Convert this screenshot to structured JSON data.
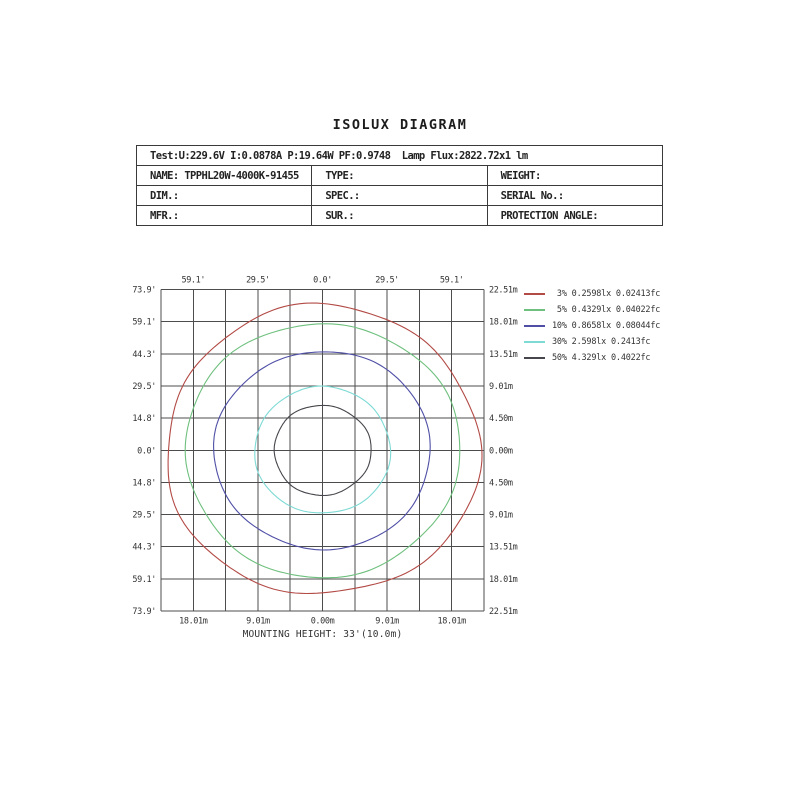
{
  "title": "ISOLUX DIAGRAM",
  "info_table": {
    "test_line": "Test:U:229.6V I:0.0878A P:19.64W PF:0.9748  Lamp Flux:2822.72x1 lm",
    "rows": [
      {
        "c1": "NAME: TPPHL20W-4000K-91455",
        "c2": "TYPE:",
        "c3": "WEIGHT:"
      },
      {
        "c1": "DIM.:",
        "c2": "SPEC.:",
        "c3": "SERIAL No.:"
      },
      {
        "c1": "MFR.:",
        "c2": "SUR.:",
        "c3": "PROTECTION ANGLE:"
      }
    ]
  },
  "chart_data": {
    "type": "isolux_contour",
    "title": "ISOLUX DIAGRAM",
    "grid": {
      "cols": 10,
      "rows": 10,
      "cell_size_m": 4.5,
      "cell_size_ft": 14.78,
      "grid_on": true
    },
    "axes": {
      "top_unit": "feet",
      "left_unit": "feet",
      "right_unit": "meters",
      "bottom_unit": "meters",
      "top_ticks": [
        "59.1'",
        "29.5'",
        "0.0'",
        "29.5'",
        "59.1'"
      ],
      "left_ticks": [
        "73.9'",
        "59.1'",
        "44.3'",
        "29.5'",
        "14.8'",
        "0.0'",
        "14.8'",
        "29.5'",
        "44.3'",
        "59.1'",
        "73.9'"
      ],
      "right_ticks": [
        "22.51m",
        "18.01m",
        "13.51m",
        "9.01m",
        "4.50m",
        "0.00m",
        "4.50m",
        "9.01m",
        "13.51m",
        "18.01m",
        "22.51m"
      ],
      "bottom_ticks": [
        "18.01m",
        "9.01m",
        "0.00m",
        "9.01m",
        "18.01m"
      ],
      "x_range_m": [
        -22.51,
        22.51
      ],
      "y_range_m": [
        -22.51,
        22.51
      ]
    },
    "contours": [
      {
        "percent": "3%",
        "lux": "0.2598lx",
        "footcandle": "0.02413fc",
        "legend_label": " 3% 0.2598lx 0.02413fc",
        "color": "#b24a45",
        "rx_cells": 4.85,
        "ry_cells": 4.5,
        "rx_m": 21.8,
        "ry_m": 20.3
      },
      {
        "percent": "5%",
        "lux": "0.4329lx",
        "footcandle": "0.04022fc",
        "legend_label": " 5% 0.4329lx 0.04022fc",
        "color": "#6fc07e",
        "rx_cells": 4.25,
        "ry_cells": 3.95,
        "rx_m": 19.1,
        "ry_m": 17.8
      },
      {
        "percent": "10%",
        "lux": "0.8658lx",
        "footcandle": "0.08044fc",
        "legend_label": "10% 0.8658lx 0.08044fc",
        "color": "#4f4fa6",
        "rx_cells": 3.35,
        "ry_cells": 3.08,
        "rx_m": 15.1,
        "ry_m": 13.9
      },
      {
        "percent": "30%",
        "lux": "2.598lx",
        "footcandle": "0.2413fc",
        "legend_label": "30% 2.598lx 0.2413fc",
        "color": "#7edad4",
        "rx_cells": 2.1,
        "ry_cells": 1.97,
        "rx_m": 9.5,
        "ry_m": 8.9
      },
      {
        "percent": "50%",
        "lux": "4.329lx",
        "footcandle": "0.4022fc",
        "legend_label": "50% 4.329lx 0.4022fc",
        "color": "#46464c",
        "rx_cells": 1.5,
        "ry_cells": 1.4,
        "rx_m": 6.8,
        "ry_m": 6.3
      }
    ],
    "legend_position": "right",
    "mounting_height": "MOUNTING HEIGHT: 33'(10.0m)"
  }
}
